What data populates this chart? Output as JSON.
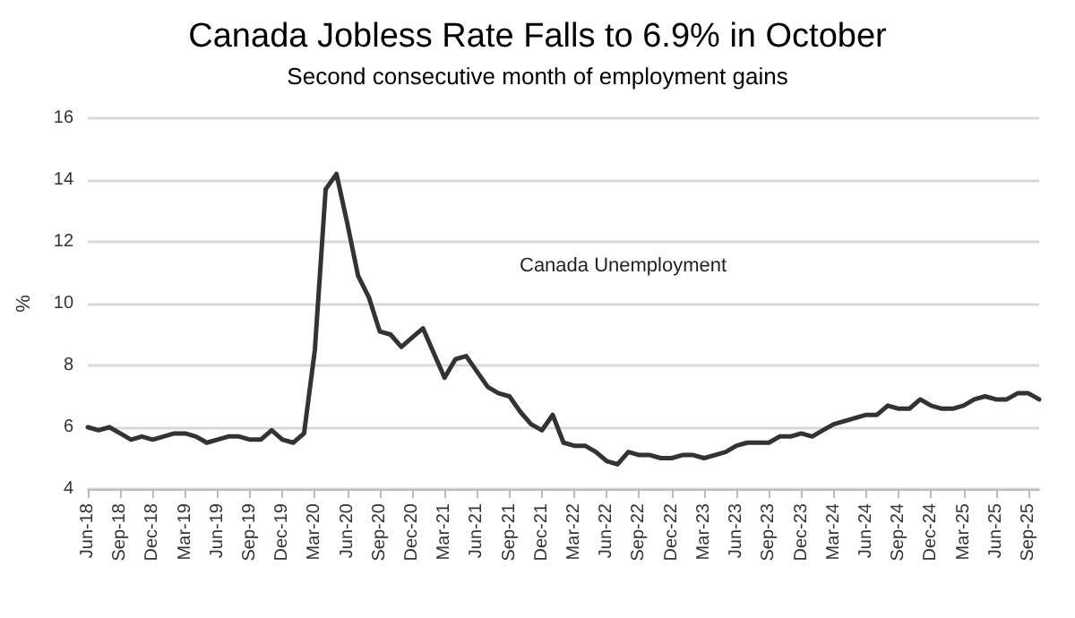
{
  "chart_data": {
    "type": "line",
    "title": "Canada Jobless Rate Falls to 6.9% in October",
    "subtitle": "Second consecutive month of employment gains",
    "ylabel": "%",
    "categories": [
      "Jun-18",
      null,
      null,
      "Sep-18",
      null,
      null,
      "Dec-18",
      null,
      null,
      "Mar-19",
      null,
      null,
      "Jun-19",
      null,
      null,
      "Sep-19",
      null,
      null,
      "Dec-19",
      null,
      null,
      "Mar-20",
      null,
      null,
      "Jun-20",
      null,
      null,
      "Sep-20",
      null,
      null,
      "Dec-20",
      null,
      null,
      "Mar-21",
      null,
      null,
      "Jun-21",
      null,
      null,
      "Sep-21",
      null,
      null,
      "Dec-21",
      null,
      null,
      "Mar-22",
      null,
      null,
      "Jun-22",
      null,
      null,
      "Sep-22",
      null,
      null,
      "Dec-22",
      null,
      null,
      "Mar-23",
      null,
      null,
      "Jun-23",
      null,
      null,
      "Sep-23",
      null,
      null,
      "Dec-23",
      null,
      null,
      "Mar-24",
      null,
      null,
      "Jun-24",
      null,
      null,
      "Sep-24",
      null,
      null,
      "Dec-24",
      null,
      null,
      "Mar-25",
      null,
      null,
      "Jun-25",
      null,
      null,
      "Sep-25",
      null
    ],
    "series": [
      {
        "name": "Canada Unemployment",
        "color": "#333333",
        "values": [
          6.0,
          5.9,
          6.0,
          5.8,
          5.6,
          5.7,
          5.6,
          5.7,
          5.8,
          5.8,
          5.7,
          5.5,
          5.6,
          5.7,
          5.7,
          5.6,
          5.6,
          5.9,
          5.6,
          5.5,
          5.8,
          8.5,
          13.7,
          14.2,
          12.6,
          10.9,
          10.2,
          9.1,
          9.0,
          8.6,
          8.9,
          9.2,
          8.4,
          7.6,
          8.2,
          8.3,
          7.8,
          7.3,
          7.1,
          7.0,
          6.5,
          6.1,
          5.9,
          6.4,
          5.5,
          5.4,
          5.4,
          5.2,
          4.9,
          4.8,
          5.2,
          5.1,
          5.1,
          5.0,
          5.0,
          5.1,
          5.1,
          5.0,
          5.1,
          5.2,
          5.4,
          5.5,
          5.5,
          5.5,
          5.7,
          5.7,
          5.8,
          5.7,
          5.9,
          6.1,
          6.2,
          6.3,
          6.4,
          6.4,
          6.7,
          6.6,
          6.6,
          6.9,
          6.7,
          6.6,
          6.6,
          6.7,
          6.9,
          7.0,
          6.9,
          6.9,
          7.1,
          7.1,
          6.9
        ]
      }
    ],
    "ylim": [
      4,
      16
    ],
    "yticks": [
      4,
      6,
      8,
      10,
      12,
      14,
      16
    ],
    "grid": "y",
    "legend": false,
    "marker": "none",
    "line_style": "solid"
  }
}
